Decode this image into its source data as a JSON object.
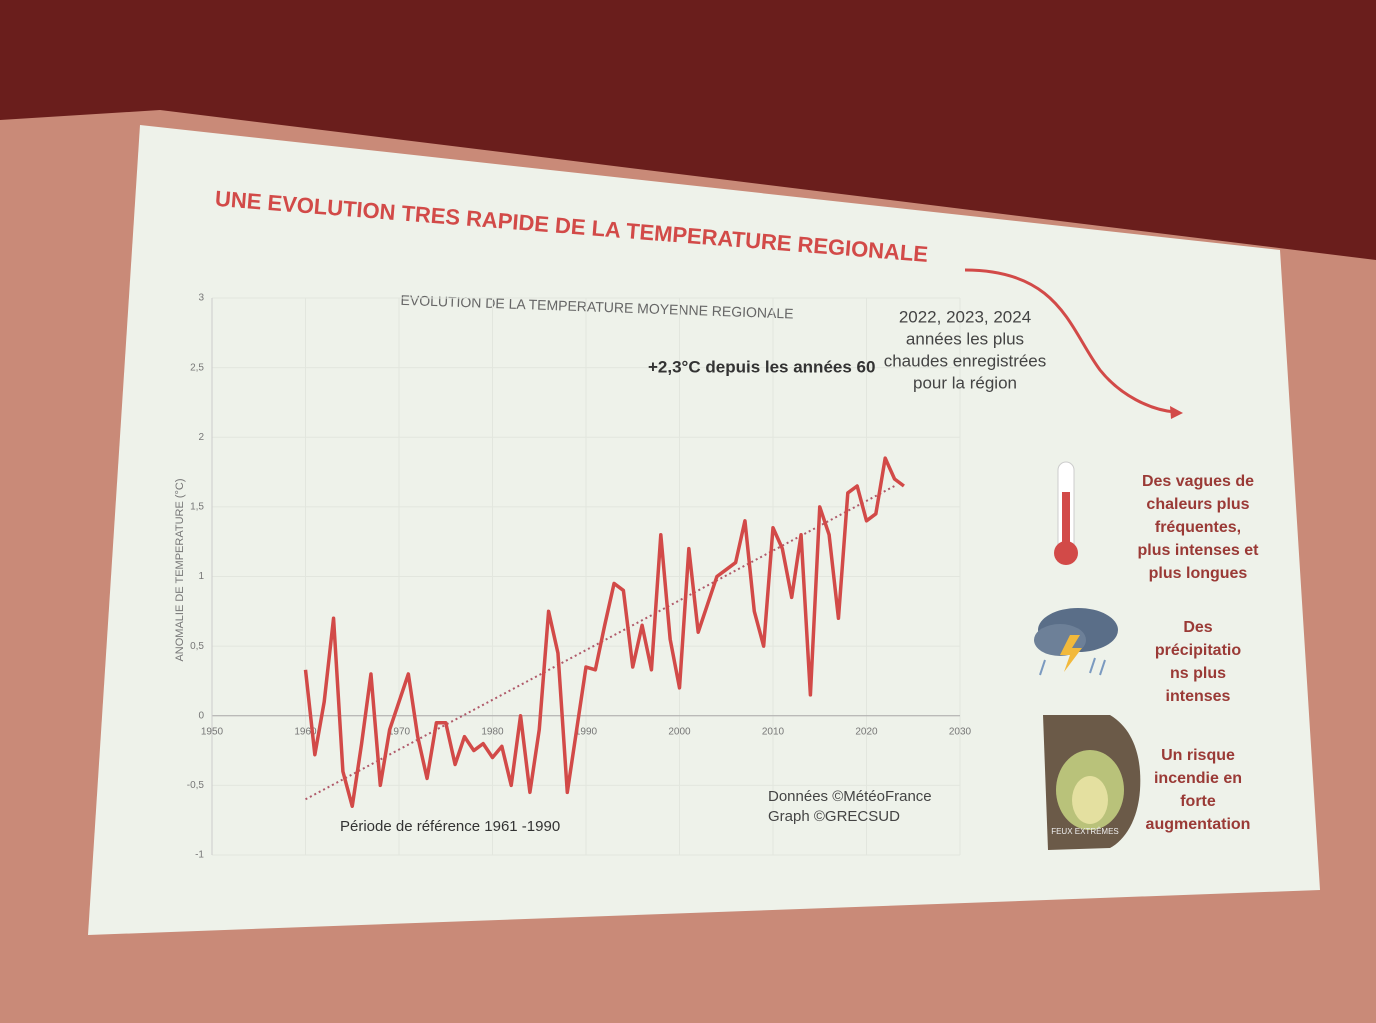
{
  "slide_title": "UNE EVOLUTION TRES RAPIDE DE LA TEMPERATURE REGIONALE",
  "chart_data": {
    "type": "line",
    "title": "EVOLUTION DE LA TEMPERATURE MOYENNE REGIONALE",
    "y_label": "ANOMALIE DE TEMPERATURE (°C)",
    "x": [
      1960,
      1961,
      1962,
      1963,
      1964,
      1965,
      1966,
      1967,
      1968,
      1969,
      1970,
      1971,
      1972,
      1973,
      1974,
      1975,
      1976,
      1977,
      1978,
      1979,
      1980,
      1981,
      1982,
      1983,
      1984,
      1985,
      1986,
      1987,
      1988,
      1989,
      1990,
      1991,
      1992,
      1993,
      1994,
      1995,
      1996,
      1997,
      1998,
      1999,
      2000,
      2001,
      2002,
      2003,
      2004,
      2005,
      2006,
      2007,
      2008,
      2009,
      2010,
      2011,
      2012,
      2013,
      2014,
      2015,
      2016,
      2017,
      2018,
      2019,
      2020,
      2021,
      2022,
      2023,
      2024
    ],
    "series": [
      {
        "color": "#d24a48",
        "values": [
          0.33,
          -0.28,
          0.1,
          0.7,
          -0.4,
          -0.65,
          -0.2,
          0.3,
          -0.5,
          -0.1,
          0.1,
          0.3,
          -0.15,
          -0.45,
          -0.05,
          -0.05,
          -0.35,
          -0.15,
          -0.25,
          -0.2,
          -0.3,
          -0.22,
          -0.5,
          0.0,
          -0.55,
          -0.1,
          0.75,
          0.45,
          -0.55,
          -0.1,
          0.35,
          0.33,
          0.65,
          0.95,
          0.9,
          0.35,
          0.65,
          0.33,
          1.3,
          0.55,
          0.2,
          1.2,
          0.6,
          0.8,
          1.0,
          1.05,
          1.1,
          1.4,
          0.75,
          0.5,
          1.35,
          1.2,
          0.85,
          1.3,
          0.15,
          1.5,
          1.3,
          0.7,
          1.6,
          1.65,
          1.4,
          1.45,
          1.85,
          1.7,
          1.65
        ]
      },
      {
        "color": "#d24a48",
        "values": [
          null,
          null,
          null,
          null,
          null,
          null,
          null,
          null,
          null,
          null,
          null,
          null,
          null,
          null,
          null,
          null,
          null,
          null,
          null,
          null,
          null,
          null,
          null,
          null,
          null,
          null,
          null,
          null,
          null,
          null,
          null,
          null,
          null,
          null,
          null,
          null,
          null,
          null,
          null,
          null,
          null,
          null,
          null,
          null,
          null,
          null,
          null,
          null,
          null,
          null,
          null,
          null,
          null,
          null,
          null,
          null,
          null,
          null,
          null,
          null,
          null,
          null,
          null,
          null,
          null
        ]
      }
    ],
    "trend": {
      "x": [
        1960,
        2023
      ],
      "values": [
        -0.6,
        1.65
      ],
      "color": "#b05a6a"
    },
    "xlim": [
      1950,
      2030
    ],
    "xticks": [
      1950,
      1960,
      1970,
      1980,
      1990,
      2000,
      2010,
      2020,
      2030
    ],
    "ylim": [
      -1,
      3
    ],
    "yticks": [
      -1,
      {
        "value": -0.5,
        "label": "-0,5"
      },
      0,
      {
        "value": 0.5,
        "label": "0,5"
      },
      1,
      {
        "value": 1.5,
        "label": "1,5"
      },
      2,
      {
        "value": 2.5,
        "label": "2,5"
      },
      3
    ],
    "grid": true,
    "annotations": {
      "increase": "+2,3°C depuis les années 60",
      "record_years": [
        "2022, 2023, 2024",
        "années les plus",
        "chaudes enregistrées",
        "pour la région"
      ],
      "reference": "Période de référence 1961 -1990",
      "source": [
        "Données ©MétéoFrance",
        "Graph ©GRECSUD"
      ]
    }
  },
  "impacts": [
    {
      "lines": [
        "Des vagues de",
        "chaleurs plus",
        "fréquentes,",
        "plus intenses et",
        "plus longues"
      ]
    },
    {
      "lines": [
        "Des",
        "précipitatio",
        "ns plus",
        "intenses"
      ]
    },
    {
      "lines": [
        "Un risque",
        "incendie en",
        "forte",
        "augmentation"
      ],
      "badge": "FEUX EXTRÊMES"
    }
  ]
}
